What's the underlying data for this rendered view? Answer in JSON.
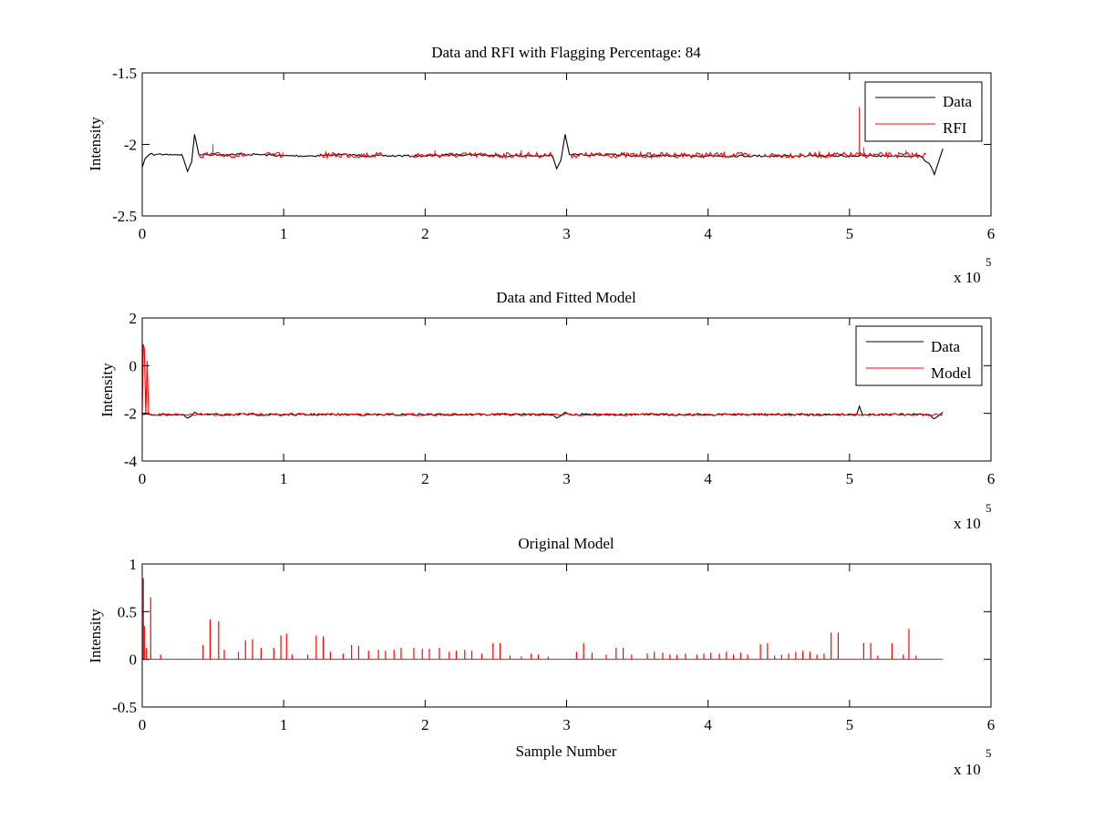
{
  "chart_data": [
    {
      "type": "line",
      "title": "Data and RFI with Flagging Percentage: 84",
      "xlabel": "",
      "ylabel": "Intensity",
      "xlim": [
        0,
        600000
      ],
      "ylim": [
        -2.5,
        -1.5
      ],
      "xticks": [
        0,
        100000,
        200000,
        300000,
        400000,
        500000,
        600000
      ],
      "xtick_labels": [
        "0",
        "1",
        "2",
        "3",
        "4",
        "5",
        "6"
      ],
      "yticks": [
        -1.5,
        -2,
        -2.5
      ],
      "ytick_labels": [
        "-1.5",
        "-2",
        "-2.5"
      ],
      "x_multiplier": {
        "base": "x 10",
        "exponent": "5"
      },
      "legend": {
        "position": "top-right",
        "entries": [
          {
            "label": "Data",
            "color": "#000000"
          },
          {
            "label": "RFI",
            "color": "#ff0000"
          }
        ]
      },
      "y_direction": "reversed",
      "grid": false,
      "series": [
        {
          "name": "Data",
          "color": "#000000",
          "x": [
            0,
            2000,
            5000,
            10000,
            20000,
            28000,
            32000,
            35000,
            37000,
            40000,
            60000,
            80000,
            100000,
            120000,
            140000,
            160000,
            180000,
            200000,
            230000,
            260000,
            290000,
            293000,
            296000,
            299000,
            302000,
            320000,
            350000,
            400000,
            440000,
            470000,
            500000,
            530000,
            550000,
            556000,
            560000,
            563000,
            566000
          ],
          "y": [
            -2.16,
            -2.1,
            -2.07,
            -2.07,
            -2.07,
            -2.07,
            -2.19,
            -2.12,
            -1.93,
            -2.07,
            -2.07,
            -2.07,
            -2.08,
            -2.08,
            -2.07,
            -2.08,
            -2.08,
            -2.08,
            -2.07,
            -2.08,
            -2.08,
            -2.17,
            -2.11,
            -1.93,
            -2.07,
            -2.07,
            -2.08,
            -2.08,
            -2.08,
            -2.08,
            -2.08,
            -2.08,
            -2.08,
            -2.13,
            -2.21,
            -2.12,
            -2.03
          ]
        },
        {
          "name": "RFI",
          "color": "#ff0000",
          "segments": [
            [
              40000,
              75000
            ],
            [
              87000,
              100000
            ],
            [
              125000,
              170000
            ],
            [
              190000,
              290000
            ],
            [
              303000,
              430000
            ],
            [
              440000,
              555000
            ]
          ],
          "baseline": -2.075,
          "spikes": [
            {
              "x": 50000,
              "y": -2.0
            },
            {
              "x": 207000,
              "y": -2.04
            },
            {
              "x": 268000,
              "y": -2.04
            },
            {
              "x": 507000,
              "y": -1.74
            },
            {
              "x": 510000,
              "y": -2.02
            },
            {
              "x": 540000,
              "y": -2.04
            }
          ]
        }
      ]
    },
    {
      "type": "line",
      "title": "Data and Fitted Model",
      "xlabel": "",
      "ylabel": "Intensity",
      "xlim": [
        0,
        600000
      ],
      "ylim": [
        -4,
        2
      ],
      "xticks": [
        0,
        100000,
        200000,
        300000,
        400000,
        500000,
        600000
      ],
      "xtick_labels": [
        "0",
        "1",
        "2",
        "3",
        "4",
        "5",
        "6"
      ],
      "yticks": [
        2,
        0,
        -2,
        -4
      ],
      "ytick_labels": [
        "2",
        "0",
        "-2",
        "-4"
      ],
      "x_multiplier": {
        "base": "x 10",
        "exponent": "5"
      },
      "legend": {
        "position": "top-right",
        "entries": [
          {
            "label": "Data",
            "color": "#000000"
          },
          {
            "label": "Model",
            "color": "#ff0000"
          }
        ]
      },
      "grid": false,
      "series": [
        {
          "name": "Data",
          "color": "#000000",
          "x": [
            0,
            28000,
            32000,
            35000,
            37000,
            40000,
            290000,
            293000,
            296000,
            299000,
            302000,
            505000,
            507000,
            509000,
            556000,
            560000,
            563000,
            566000
          ],
          "y": [
            -2.05,
            -2.05,
            -2.2,
            -2.1,
            -1.95,
            -2.05,
            -2.05,
            -2.2,
            -2.1,
            -1.95,
            -2.05,
            -2.05,
            -1.7,
            -2.05,
            -2.05,
            -2.22,
            -2.1,
            -1.95
          ]
        },
        {
          "name": "Model",
          "color": "#ff0000",
          "x": [
            0,
            800,
            1500,
            2500,
            3500,
            4500,
            566000
          ],
          "y": [
            -2.05,
            0.9,
            0.7,
            -2.05,
            0.2,
            -2.05,
            -2.05
          ]
        }
      ]
    },
    {
      "type": "line",
      "title": "Original Model",
      "xlabel": "Sample Number",
      "ylabel": "Intensity",
      "xlim": [
        0,
        600000
      ],
      "ylim": [
        -0.5,
        1
      ],
      "xticks": [
        0,
        100000,
        200000,
        300000,
        400000,
        500000,
        600000
      ],
      "xtick_labels": [
        "0",
        "1",
        "2",
        "3",
        "4",
        "5",
        "6"
      ],
      "yticks": [
        1,
        0.5,
        0,
        -0.5
      ],
      "ytick_labels": [
        "1",
        "0.5",
        "0",
        "-0.5"
      ],
      "x_multiplier": {
        "base": "x 10",
        "exponent": "5"
      },
      "grid": false,
      "series": [
        {
          "name": "Model",
          "color": "#ff0000",
          "baseline": 0,
          "x_end": 566000,
          "spikes_x": [
            800,
            1500,
            3000,
            6000,
            13000,
            43000,
            48000,
            54000,
            58000,
            68000,
            73000,
            78000,
            84000,
            93000,
            98000,
            102000,
            106000,
            117000,
            123000,
            128000,
            133000,
            142000,
            148000,
            153000,
            160000,
            167000,
            172000,
            178000,
            183000,
            192000,
            198000,
            203000,
            210000,
            217000,
            222000,
            228000,
            233000,
            240000,
            248000,
            253000,
            260000,
            268000,
            275000,
            280000,
            287000,
            307000,
            312000,
            318000,
            328000,
            335000,
            340000,
            346000,
            357000,
            362000,
            368000,
            373000,
            378000,
            384000,
            392000,
            397000,
            402000,
            408000,
            413000,
            418000,
            423000,
            428000,
            437000,
            442000,
            447000,
            452000,
            457000,
            462000,
            467000,
            472000,
            477000,
            482000,
            487000,
            492000,
            510000,
            515000,
            520000,
            530000,
            538000,
            542000,
            547000
          ],
          "spikes_y": [
            0.85,
            0.35,
            0.12,
            0.65,
            0.05,
            0.15,
            0.42,
            0.4,
            0.1,
            0.08,
            0.2,
            0.21,
            0.12,
            0.12,
            0.25,
            0.27,
            0.05,
            0.05,
            0.25,
            0.24,
            0.08,
            0.06,
            0.15,
            0.14,
            0.09,
            0.1,
            0.09,
            0.1,
            0.12,
            0.12,
            0.11,
            0.11,
            0.12,
            0.08,
            0.09,
            0.1,
            0.09,
            0.06,
            0.17,
            0.17,
            0.04,
            0.03,
            0.06,
            0.05,
            0.03,
            0.08,
            0.17,
            0.07,
            0.05,
            0.12,
            0.12,
            0.05,
            0.06,
            0.08,
            0.07,
            0.05,
            0.05,
            0.06,
            0.05,
            0.06,
            0.07,
            0.06,
            0.08,
            0.05,
            0.07,
            0.05,
            0.16,
            0.17,
            0.04,
            0.05,
            0.06,
            0.08,
            0.09,
            0.08,
            0.05,
            0.06,
            0.28,
            0.28,
            0.17,
            0.17,
            0.04,
            0.17,
            0.05,
            0.32,
            0.04
          ]
        }
      ]
    }
  ]
}
